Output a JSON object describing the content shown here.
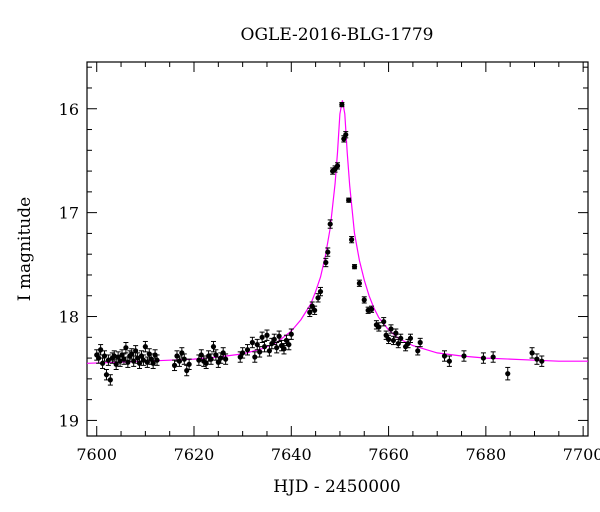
{
  "chart_data": {
    "type": "scatter",
    "title": "OGLE-2016-BLG-1779",
    "xlabel": "HJD - 2450000",
    "ylabel": "I magnitude",
    "xlim": [
      7598,
      7701
    ],
    "ylim": [
      19.15,
      15.55
    ],
    "y_inverted": true,
    "x_ticks": [
      7600,
      7620,
      7640,
      7660,
      7680,
      7700
    ],
    "x_tick_labels": [
      "7600",
      "7620",
      "7640",
      "7660",
      "7680",
      "7700"
    ],
    "y_ticks": [
      16,
      17,
      18,
      19
    ],
    "y_tick_labels": [
      "16",
      "17",
      "18",
      "19"
    ],
    "grid": false,
    "colors": {
      "data": "#000000",
      "model": "#ff00ff"
    },
    "series": [
      {
        "kind": "points_with_errorbars",
        "x": [
          7600.0,
          7600.4,
          7600.8,
          7601.2,
          7601.6,
          7602.0,
          7602.4,
          7602.8,
          7603.2,
          7603.6,
          7604.0,
          7604.4,
          7604.8,
          7605.2,
          7605.6,
          7606.0,
          7606.4,
          7606.8,
          7607.2,
          7607.6,
          7608.0,
          7608.4,
          7608.8,
          7609.2,
          7609.6,
          7610.0,
          7610.4,
          7610.8,
          7611.2,
          7611.6,
          7612.0,
          7612.4,
          7616.0,
          7616.5,
          7617.0,
          7617.5,
          7618.0,
          7618.5,
          7619.0,
          7621.0,
          7621.5,
          7622.0,
          7622.5,
          7623.0,
          7623.5,
          7624.0,
          7624.5,
          7625.0,
          7625.5,
          7626.0,
          7626.5,
          7629.5,
          7630.0,
          7631.0,
          7632.0,
          7632.5,
          7633.0,
          7633.5,
          7634.0,
          7634.5,
          7635.0,
          7635.5,
          7636.0,
          7636.5,
          7637.0,
          7637.5,
          7638.0,
          7638.5,
          7639.0,
          7639.5,
          7640.0,
          7643.8,
          7644.3,
          7644.8,
          7645.5,
          7646.0,
          7647.1,
          7647.5,
          7648.0,
          7648.5,
          7649.0,
          7649.5,
          7650.4,
          7650.8,
          7651.2,
          7651.8,
          7652.4,
          7653.0,
          7654.0,
          7655.0,
          7655.8,
          7656.5,
          7657.5,
          7658.0,
          7659.0,
          7659.5,
          7660.0,
          7660.5,
          7661.0,
          7661.5,
          7662.0,
          7662.5,
          7663.5,
          7664.0,
          7664.5,
          7666.0,
          7666.5,
          7671.5,
          7672.5,
          7675.5,
          7679.5,
          7681.5,
          7684.5,
          7689.5,
          7690.5,
          7691.5
        ],
        "y": [
          18.37,
          18.4,
          18.32,
          18.45,
          18.38,
          18.56,
          18.42,
          18.61,
          18.4,
          18.38,
          18.46,
          18.39,
          18.43,
          18.37,
          18.41,
          18.3,
          18.44,
          18.38,
          18.36,
          18.43,
          18.33,
          18.4,
          18.45,
          18.38,
          18.42,
          18.29,
          18.44,
          18.36,
          18.41,
          18.45,
          18.37,
          18.42,
          18.47,
          18.38,
          18.43,
          18.35,
          18.41,
          18.52,
          18.46,
          18.42,
          18.37,
          18.43,
          18.45,
          18.38,
          18.41,
          18.29,
          18.37,
          18.44,
          18.4,
          18.35,
          18.41,
          18.39,
          18.35,
          18.32,
          18.25,
          18.39,
          18.27,
          18.34,
          18.2,
          18.29,
          18.18,
          18.33,
          18.26,
          18.22,
          18.3,
          18.19,
          18.28,
          18.31,
          18.23,
          18.27,
          18.17,
          17.96,
          17.9,
          17.94,
          17.82,
          17.76,
          17.48,
          17.38,
          17.11,
          16.6,
          16.58,
          16.55,
          15.96,
          16.29,
          16.25,
          16.88,
          17.26,
          17.52,
          17.68,
          17.84,
          17.94,
          17.93,
          18.08,
          18.1,
          18.05,
          18.18,
          18.22,
          18.12,
          18.23,
          18.16,
          18.26,
          18.21,
          18.29,
          18.26,
          18.21,
          18.33,
          18.25,
          18.38,
          18.43,
          18.38,
          18.4,
          18.39,
          18.55,
          18.35,
          18.41,
          18.43
        ],
        "yerr": [
          0.05,
          0.05,
          0.05,
          0.05,
          0.05,
          0.05,
          0.05,
          0.05,
          0.05,
          0.05,
          0.05,
          0.05,
          0.05,
          0.05,
          0.05,
          0.05,
          0.05,
          0.05,
          0.05,
          0.05,
          0.05,
          0.05,
          0.05,
          0.05,
          0.05,
          0.05,
          0.05,
          0.05,
          0.05,
          0.05,
          0.05,
          0.05,
          0.05,
          0.05,
          0.05,
          0.05,
          0.05,
          0.05,
          0.05,
          0.05,
          0.05,
          0.05,
          0.05,
          0.05,
          0.05,
          0.05,
          0.05,
          0.05,
          0.05,
          0.05,
          0.05,
          0.05,
          0.05,
          0.05,
          0.05,
          0.05,
          0.05,
          0.05,
          0.05,
          0.05,
          0.05,
          0.05,
          0.05,
          0.05,
          0.05,
          0.05,
          0.05,
          0.05,
          0.05,
          0.05,
          0.05,
          0.04,
          0.04,
          0.04,
          0.04,
          0.04,
          0.04,
          0.04,
          0.04,
          0.03,
          0.03,
          0.03,
          0.02,
          0.03,
          0.03,
          0.02,
          0.03,
          0.02,
          0.03,
          0.03,
          0.03,
          0.03,
          0.04,
          0.04,
          0.04,
          0.04,
          0.04,
          0.04,
          0.04,
          0.04,
          0.04,
          0.04,
          0.04,
          0.04,
          0.04,
          0.04,
          0.04,
          0.05,
          0.05,
          0.05,
          0.05,
          0.05,
          0.06,
          0.05,
          0.05,
          0.05
        ]
      },
      {
        "kind": "model_curve",
        "x": [
          7598,
          7605,
          7610,
          7615,
          7620,
          7625,
          7630,
          7634,
          7637,
          7640,
          7642,
          7644,
          7645,
          7646,
          7647,
          7648,
          7649,
          7649.5,
          7650,
          7650.5,
          7651,
          7651.5,
          7652,
          7653,
          7654,
          7655,
          7656,
          7657,
          7658,
          7660,
          7662,
          7665,
          7670,
          7675,
          7680,
          7685,
          7690,
          7695,
          7701
        ],
        "y": [
          18.45,
          18.44,
          18.43,
          18.42,
          18.41,
          18.39,
          18.36,
          18.31,
          18.25,
          18.14,
          18.03,
          17.88,
          17.76,
          17.62,
          17.42,
          17.15,
          16.72,
          16.42,
          16.05,
          15.92,
          16.05,
          16.42,
          16.74,
          17.2,
          17.46,
          17.65,
          17.8,
          17.92,
          18.01,
          18.13,
          18.21,
          18.28,
          18.35,
          18.38,
          18.4,
          18.41,
          18.42,
          18.43,
          18.43
        ]
      }
    ]
  }
}
